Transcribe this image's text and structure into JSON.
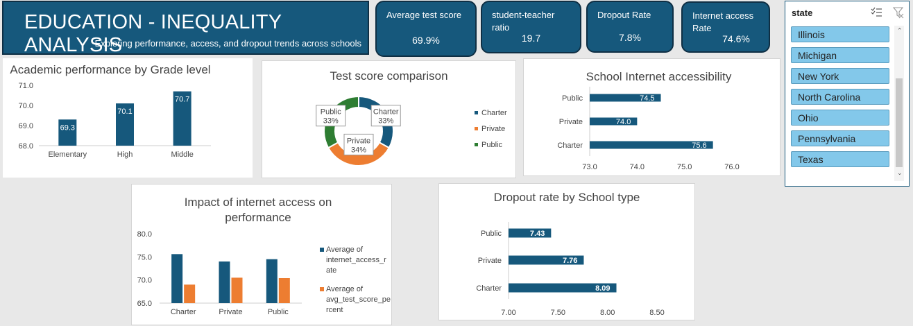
{
  "header": {
    "title": "EDUCATION - INEQUALITY ANALYSIS",
    "subtitle": "Exploring performance, access, and dropout trends across schools"
  },
  "kpis": [
    {
      "label": "Average test score",
      "value": "69.9%"
    },
    {
      "label": "student-teacher ratio",
      "value": "19.7"
    },
    {
      "label": "Dropout Rate",
      "value": "7.8%"
    },
    {
      "label": "Internet access Rate",
      "value": "74.6%"
    }
  ],
  "colors": {
    "blue": "#16587c",
    "orange": "#ed7d31",
    "green": "#2e7d32",
    "slicer_item": "#83c8ea"
  },
  "slicer": {
    "title": "state",
    "items": [
      "Illinois",
      "Michigan",
      "New York",
      "North Carolina",
      "Ohio",
      "Pennsylvania",
      "Texas"
    ]
  },
  "chart_data": [
    {
      "id": "grade",
      "type": "bar",
      "title": "Academic performance by Grade level",
      "categories": [
        "Elementary",
        "High",
        "Middle"
      ],
      "values": [
        69.3,
        70.1,
        70.7
      ],
      "data_labels": [
        "69.3",
        "70.1",
        "70.7"
      ],
      "ylim": [
        68.0,
        71.0
      ],
      "yticks": [
        "68.0",
        "69.0",
        "70.0",
        "71.0"
      ]
    },
    {
      "id": "pie",
      "type": "pie",
      "title": "Test score comparison",
      "categories": [
        "Charter",
        "Private",
        "Public"
      ],
      "values": [
        33,
        34,
        33
      ],
      "data_labels": [
        [
          "Charter",
          "33%"
        ],
        [
          "Private",
          "34%"
        ],
        [
          "Public",
          "33%"
        ]
      ],
      "legend": [
        "Charter",
        "Private",
        "Public"
      ]
    },
    {
      "id": "internet",
      "type": "bar",
      "orientation": "horizontal",
      "title": "School Internet accessibility",
      "categories": [
        "Public",
        "Private",
        "Charter"
      ],
      "values": [
        74.5,
        74.0,
        75.6
      ],
      "data_labels": [
        "74.5",
        "74.0",
        "75.6"
      ],
      "xlim": [
        73.0,
        76.0
      ],
      "xticks": [
        "73.0",
        "74.0",
        "75.0",
        "76.0"
      ]
    },
    {
      "id": "impact",
      "type": "bar",
      "title": "Impact of internet access on performance",
      "categories": [
        "Charter",
        "Private",
        "Public"
      ],
      "series": [
        {
          "name": "Average of internet_access_rate",
          "values": [
            75.6,
            74.0,
            74.5
          ]
        },
        {
          "name": "Average of avg_test_score_percent",
          "values": [
            69.0,
            70.5,
            70.4
          ]
        }
      ],
      "legend_lines": [
        [
          "Average of",
          "internet_access_r",
          "ate"
        ],
        [
          "Average of",
          "avg_test_score_pe",
          "rcent"
        ]
      ],
      "ylim": [
        65.0,
        80.0
      ],
      "yticks": [
        "65.0",
        "70.0",
        "75.0",
        "80.0"
      ]
    },
    {
      "id": "dropout",
      "type": "bar",
      "orientation": "horizontal",
      "title": "Dropout rate by School type",
      "categories": [
        "Public",
        "Private",
        "Charter"
      ],
      "values": [
        7.43,
        7.76,
        8.09
      ],
      "data_labels": [
        "7.43",
        "7.76",
        "8.09"
      ],
      "xlim": [
        7.0,
        8.5
      ],
      "xticks": [
        "7.00",
        "7.50",
        "8.00",
        "8.50"
      ]
    }
  ]
}
